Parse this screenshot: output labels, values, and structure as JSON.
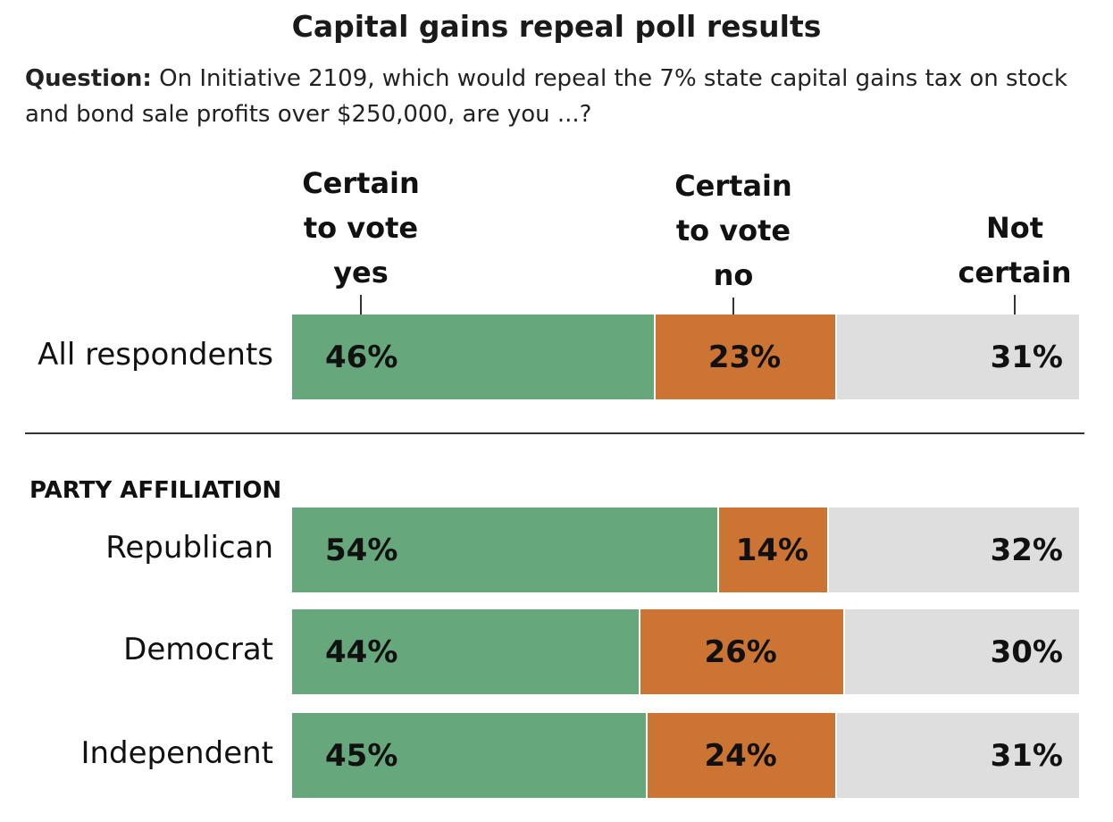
{
  "title": "Capital gains repeal poll results",
  "question_label": "Question:",
  "question_text": " On Initiative 2109, which would repeal the 7% state capital gains tax on stock and bond sale profits over $250,000, are you ...?",
  "group_label": "PARTY AFFILIATION",
  "colors": {
    "yes": "#67a77c",
    "no": "#cc7434",
    "not_certain": "#dededf"
  },
  "chart_data": {
    "type": "bar",
    "orientation": "horizontal",
    "stacked": true,
    "title": "Capital gains repeal poll results",
    "categories": [
      "All respondents",
      "Republican",
      "Democrat",
      "Independent"
    ],
    "series": [
      {
        "name": "Certain\nto vote\nyes",
        "values": [
          46,
          54,
          44,
          45
        ],
        "labels": [
          "46%",
          "54%",
          "44%",
          "45%"
        ]
      },
      {
        "name": "Certain\nto vote\nno",
        "values": [
          23,
          14,
          26,
          24
        ],
        "labels": [
          "23%",
          "14%",
          "26%",
          "24%"
        ]
      },
      {
        "name": "Not\ncertain",
        "values": [
          31,
          32,
          30,
          31
        ],
        "labels": [
          "31%",
          "32%",
          "30%",
          "31%"
        ]
      }
    ],
    "xlim": [
      0,
      100
    ],
    "grid": false,
    "legend": "top"
  }
}
